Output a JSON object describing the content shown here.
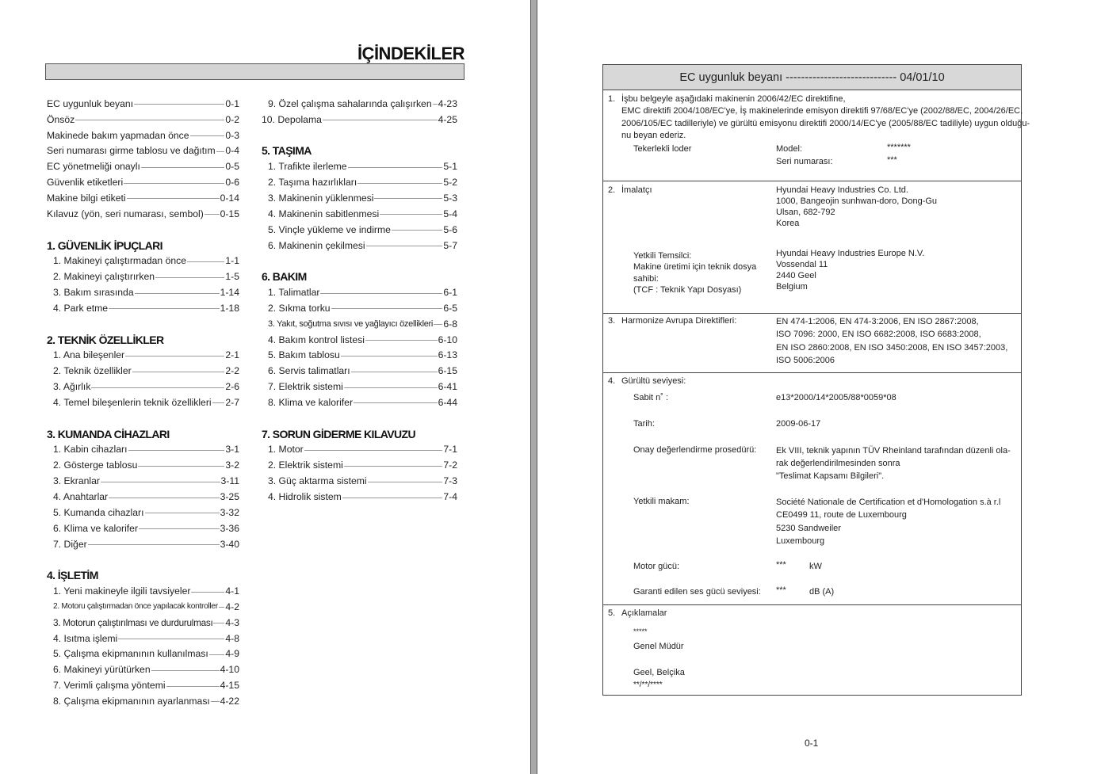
{
  "left_page": {
    "title": "İÇİNDEKİLER",
    "columns": [
      [
        {
          "label": "EC uygunluk beyanı",
          "page": "0-1"
        },
        {
          "label": "Önsöz",
          "page": "0-2"
        },
        {
          "label": "Makinede bakım yapmadan önce",
          "page": "0-3"
        },
        {
          "label": "Seri numarası girme tablosu ve dağıtım",
          "page": "0-4"
        },
        {
          "label": "EC yönetmeliği onaylı",
          "page": "0-5"
        },
        {
          "label": "Güvenlik etiketleri",
          "page": "0-6"
        },
        {
          "label": "Makine bilgi etiketi",
          "page": "0-14"
        },
        {
          "label": "Kılavuz (yön, seri numarası, sembol)",
          "page": "0-15"
        },
        {
          "blank": true
        },
        {
          "heading": "1. GÜVENLİK İPUÇLARI"
        },
        {
          "label": "1. Makineyi çalıştırmadan önce",
          "page": "1-1",
          "sub": true
        },
        {
          "label": "2. Makineyi çalıştırırken",
          "page": "1-5",
          "sub": true
        },
        {
          "label": "3. Bakım sırasında",
          "page": "1-14",
          "sub": true
        },
        {
          "label": "4. Park etme",
          "page": "1-18",
          "sub": true
        },
        {
          "blank": true
        },
        {
          "heading": "2. TEKNİK ÖZELLİKLER"
        },
        {
          "label": "1. Ana bileşenler",
          "page": "2-1",
          "sub": true
        },
        {
          "label": "2. Teknik özellikler",
          "page": "2-2",
          "sub": true
        },
        {
          "label": "3. Ağırlık",
          "page": "2-6",
          "sub": true
        },
        {
          "label": "4. Temel bileşenlerin teknik özellikleri",
          "page": "2-7",
          "sub": true
        },
        {
          "blank": true
        },
        {
          "heading": "3. KUMANDA CİHAZLARI"
        },
        {
          "label": "1. Kabin cihazları",
          "page": "3-1",
          "sub": true
        },
        {
          "label": "2. Gösterge tablosu",
          "page": "3-2",
          "sub": true
        },
        {
          "label": "3. Ekranlar",
          "page": "3-11",
          "sub": true
        },
        {
          "label": "4. Anahtarlar",
          "page": "3-25",
          "sub": true
        },
        {
          "label": "5. Kumanda cihazları",
          "page": "3-32",
          "sub": true
        },
        {
          "label": "6. Klima ve kalorifer",
          "page": "3-36",
          "sub": true
        },
        {
          "label": "7. Diğer",
          "page": "3-40",
          "sub": true
        },
        {
          "blank": true
        },
        {
          "heading": "4. İŞLETİM"
        },
        {
          "label": "1. Yeni makineyle ilgili tavsiyeler",
          "page": "4-1",
          "sub": true
        },
        {
          "label": "2. Motoru çalıştırmadan önce yapılacak kontroller",
          "page": "4-2",
          "sub": true
        },
        {
          "label": "3. Motorun çalıştırılması ve durdurulması",
          "page": "4-3",
          "sub": true
        },
        {
          "label": "4. Isıtma işlemi",
          "page": "4-8",
          "sub": true
        },
        {
          "label": "5. Çalışma ekipmanının kullanılması",
          "page": "4-9",
          "sub": true
        },
        {
          "label": "6. Makineyi yürütürken",
          "page": "4-10",
          "sub": true
        },
        {
          "label": "7. Verimli çalışma yöntemi",
          "page": "4-15",
          "sub": true
        },
        {
          "label": "8. Çalışma ekipmanının ayarlanması",
          "page": "4-22",
          "sub": true
        }
      ],
      [
        {
          "label": "9. Özel çalışma sahalarında çalışırken",
          "page": "4-23",
          "sub": true
        },
        {
          "label": "10. Depolama",
          "page": "4-25"
        },
        {
          "blank": true
        },
        {
          "heading": "5. TAŞIMA"
        },
        {
          "label": "1. Trafikte ilerleme",
          "page": "5-1",
          "sub": true
        },
        {
          "label": "2. Taşıma hazırlıkları",
          "page": "5-2",
          "sub": true
        },
        {
          "label": "3. Makinenin yüklenmesi",
          "page": "5-3",
          "sub": true
        },
        {
          "label": "4. Makinenin sabitlenmesi",
          "page": "5-4",
          "sub": true
        },
        {
          "label": "5. Vinçle yükleme ve indirme",
          "page": "5-6",
          "sub": true
        },
        {
          "label": "6. Makinenin çekilmesi",
          "page": "5-7",
          "sub": true
        },
        {
          "blank": true
        },
        {
          "heading": "6. BAKIM"
        },
        {
          "label": "1. Talimatlar",
          "page": "6-1",
          "sub": true
        },
        {
          "label": "2. Sıkma torku",
          "page": "6-5",
          "sub": true
        },
        {
          "label": "3. Yakıt, soğutma sıvısı ve yağlayıcı özellikleri",
          "page": "6-8",
          "sub": true
        },
        {
          "label": "4. Bakım kontrol listesi",
          "page": "6-10",
          "sub": true
        },
        {
          "label": "5. Bakım tablosu",
          "page": "6-13",
          "sub": true
        },
        {
          "label": "6. Servis talimatları",
          "page": "6-15",
          "sub": true
        },
        {
          "label": "7. Elektrik sistemi",
          "page": "6-41",
          "sub": true
        },
        {
          "label": "8. Klima ve kalorifer",
          "page": "6-44",
          "sub": true
        },
        {
          "blank": true
        },
        {
          "heading": "7. SORUN GİDERME KILAVUZU"
        },
        {
          "label": "1. Motor",
          "page": "7-1",
          "sub": true
        },
        {
          "label": "2. Elektrik sistemi",
          "page": "7-2",
          "sub": true
        },
        {
          "label": "3. Güç aktarma sistemi",
          "page": "7-3",
          "sub": true
        },
        {
          "label": "4. Hidrolik sistem",
          "page": "7-4",
          "sub": true
        }
      ]
    ]
  },
  "right_page": {
    "header": "EC uygunluk beyanı ----------------------------- 04/01/10",
    "s1": {
      "num": "1.",
      "lines": [
        "İşbu belgeyle aşağıdaki makinenin 2006/42/EC direktifine,",
        "EMC direktifi 2004/108/EC'ye, İş makinelerinde emisyon direktifi 97/68/EC'ye (2002/88/EC, 2004/26/EC,",
        "2006/105/EC tadilleriyle) ve gürültü emisyonu direktifi 2000/14/EC'ye (2005/88/EC tadiliyle) uygun olduğu-",
        "nu beyan ederiz."
      ],
      "machine": "Tekerlekli loder",
      "model_label": "Model:",
      "model_value": "*******",
      "serial_label": "Seri numarası:",
      "serial_value": "***"
    },
    "s2": {
      "num": "2.",
      "label": "İmalatçı",
      "manufacturer": [
        "Hyundai Heavy Industries Co. Ltd.",
        "1000, Bangeojin sunhwan-doro, Dong-Gu",
        "Ulsan, 682-792",
        "Korea"
      ],
      "rep_label": [
        "Yetkili Temsilci:",
        "Makine üretimi için teknik dosya",
        "sahibi:",
        "(TCF : Teknik Yapı Dosyası)"
      ],
      "rep": [
        "Hyundai Heavy Industries Europe N.V.",
        "Vossendal 11",
        "2440 Geel",
        "Belgium"
      ]
    },
    "s3": {
      "num": "3.",
      "label": "Harmonize Avrupa Direktifleri:",
      "lines": [
        "EN 474-1:2006, EN 474-3:2006, EN ISO 2867:2008,",
        "ISO 7096: 2000, EN ISO 6682:2008, ISO 6683:2008,",
        "EN ISO 2860:2008, EN ISO 3450:2008, EN ISO 3457:2003,",
        "ISO 5006:2006"
      ]
    },
    "s4": {
      "num": "4.",
      "label": "Gürültü seviyesi:",
      "fixed_label": "Sabit n˚ :",
      "fixed_value": "e13*2000/14*2005/88*0059*08",
      "date_label": "Tarih:",
      "date_value": "2009-06-17",
      "procedure_label": "Onay değerlendirme prosedürü:",
      "procedure": [
        "Ek VIII, teknik yapının TÜV Rheinland tarafından düzenli ola-",
        "rak değerlendirilmesinden sonra",
        "\"Teslimat Kapsamı Bilgileri\"."
      ],
      "authority_label": "Yetkili makam:",
      "authority": [
        "Société Nationale de Certification et d'Homologation s.à r.l",
        "CE0499 11, route de Luxembourg",
        "5230 Sandweiler",
        "Luxembourg"
      ],
      "power_label": "Motor gücü:",
      "power_value": "***",
      "power_unit": "kW",
      "sound_label": "Garanti edilen ses gücü seviyesi:",
      "sound_value": "***",
      "sound_unit": "dB (A)"
    },
    "s5": {
      "num": "5.",
      "label": "Açıklamalar",
      "name": "*****",
      "role": "Genel Müdür",
      "place": "Geel, Belçika",
      "date": "**/**/****"
    },
    "page_number": "0-1"
  }
}
